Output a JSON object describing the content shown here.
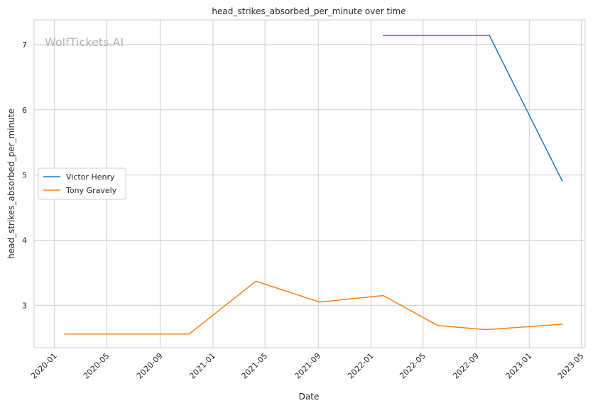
{
  "chart_data": {
    "type": "line",
    "title": "head_strikes_absorbed_per_minute over time",
    "xlabel": "Date",
    "ylabel": "head_strikes_absorbed_per_minute",
    "watermark": "WolfTickets.AI",
    "x_ticks": [
      "2020-01",
      "2020-05",
      "2020-09",
      "2021-01",
      "2021-05",
      "2021-09",
      "2022-01",
      "2022-05",
      "2022-09",
      "2023-01",
      "2023-05"
    ],
    "y_ticks": [
      3,
      4,
      5,
      6,
      7
    ],
    "xlim": [
      "2019-11-15",
      "2023-05-10"
    ],
    "ylim": [
      2.35,
      7.38
    ],
    "grid": true,
    "legend_position": "center-left",
    "series": [
      {
        "name": "Victor Henry",
        "color": "#1f77b4",
        "points": [
          {
            "x": "2022-01-29",
            "y": 7.14
          },
          {
            "x": "2022-10-01",
            "y": 7.14
          },
          {
            "x": "2023-03-18",
            "y": 4.91
          }
        ]
      },
      {
        "name": "Tony Gravely",
        "color": "#ff7f0e",
        "points": [
          {
            "x": "2020-01-25",
            "y": 2.56
          },
          {
            "x": "2020-11-07",
            "y": 2.56
          },
          {
            "x": "2021-04-10",
            "y": 3.37
          },
          {
            "x": "2021-09-04",
            "y": 3.05
          },
          {
            "x": "2022-01-29",
            "y": 3.15
          },
          {
            "x": "2022-06-04",
            "y": 2.69
          },
          {
            "x": "2022-09-17",
            "y": 2.63
          },
          {
            "x": "2022-10-01",
            "y": 2.63
          },
          {
            "x": "2023-03-18",
            "y": 2.71
          }
        ]
      }
    ]
  }
}
